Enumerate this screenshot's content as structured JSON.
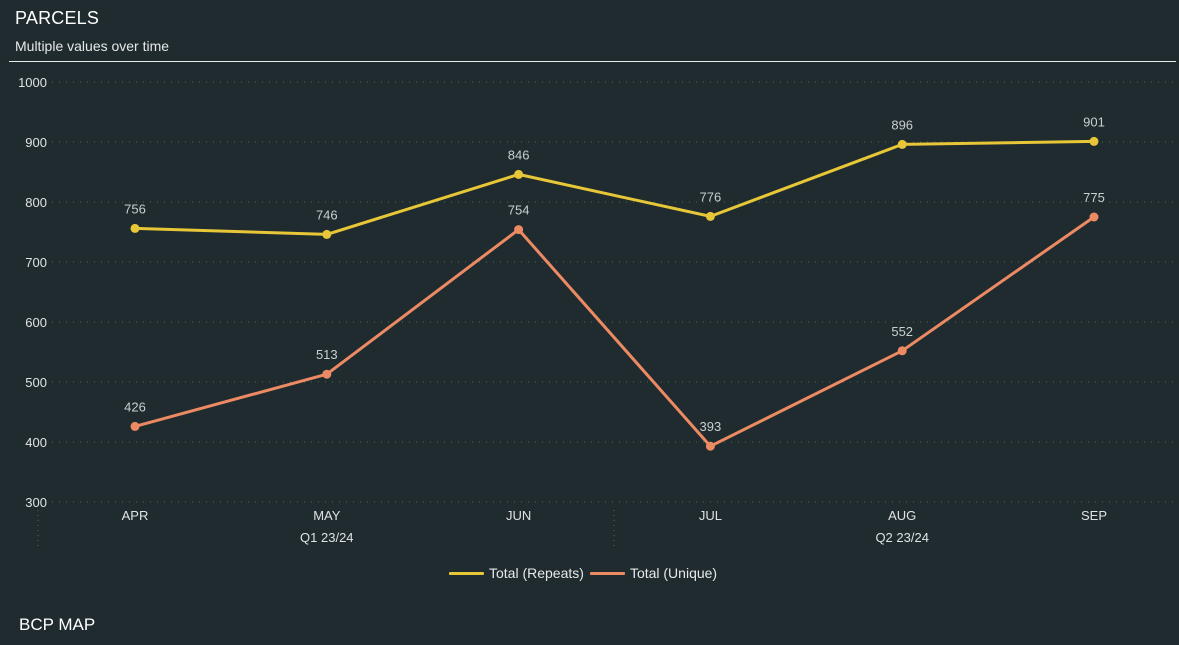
{
  "header": {
    "title": "PARCELS",
    "subtitle": "Multiple values over time"
  },
  "section": {
    "title": "BCP MAP"
  },
  "colors": {
    "background": "#1f2b2e",
    "repeats": "#e7c637",
    "unique": "#ec8a63",
    "grid": "#4f6a4a",
    "axis_text": "#dfe3e4",
    "label_text": "#c9cfd1"
  },
  "chart_data": {
    "type": "line",
    "categories": [
      "APR",
      "MAY",
      "JUN",
      "JUL",
      "AUG",
      "SEP"
    ],
    "groups": [
      {
        "label": "Q1 23/24",
        "categories": [
          "APR",
          "MAY",
          "JUN"
        ]
      },
      {
        "label": "Q2 23/24",
        "categories": [
          "JUL",
          "AUG",
          "SEP"
        ]
      }
    ],
    "series": [
      {
        "name": "Total (Repeats)",
        "values": [
          756,
          746,
          846,
          776,
          896,
          901
        ]
      },
      {
        "name": "Total (Unique)",
        "values": [
          426,
          513,
          754,
          393,
          552,
          775
        ]
      }
    ],
    "ylim": [
      300,
      1000
    ],
    "yticks": [
      1000,
      900,
      800,
      700,
      600,
      500,
      400,
      300
    ],
    "grid": true,
    "legend_position": "bottom-center",
    "data_labels": true
  }
}
